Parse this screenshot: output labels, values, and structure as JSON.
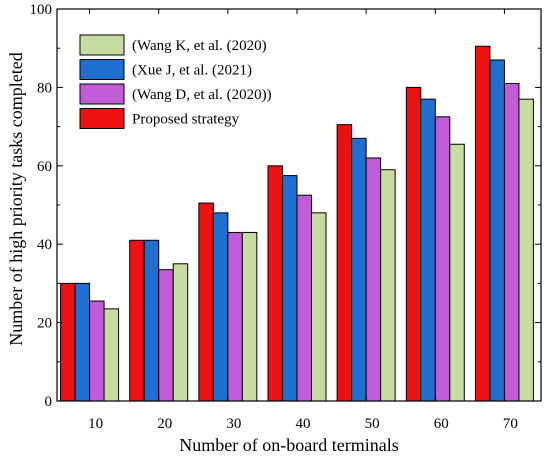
{
  "chart_data": {
    "type": "bar",
    "xlabel": "Number of on-board terminals",
    "ylabel": "Number of high priority tasks completed",
    "categories": [
      "10",
      "20",
      "30",
      "40",
      "50",
      "60",
      "70"
    ],
    "ylim": [
      0,
      100
    ],
    "yticks": [
      "0",
      "20",
      "40",
      "60",
      "80",
      "100"
    ],
    "grid": false,
    "legend_placement": "top-left",
    "series": [
      {
        "name": "Proposed strategy",
        "color": "#ee1111",
        "values": [
          30,
          41,
          50.5,
          60,
          70.5,
          80,
          90.5
        ]
      },
      {
        "name": "(Xue J, et al. (2021)",
        "color": "#1f6fd1",
        "values": [
          30,
          41,
          48,
          57.5,
          67,
          77,
          87
        ]
      },
      {
        "name": "(Wang D, et al. (2020))",
        "color": "#c15bd7",
        "values": [
          25.5,
          33.5,
          43,
          52.5,
          62,
          72.5,
          81
        ]
      },
      {
        "name": "(Wang K, et al. (2020)",
        "color": "#c7dca0",
        "values": [
          23.5,
          35,
          43,
          48,
          59,
          65.5,
          77
        ]
      }
    ],
    "legend_order": [
      3,
      1,
      2,
      0
    ]
  }
}
